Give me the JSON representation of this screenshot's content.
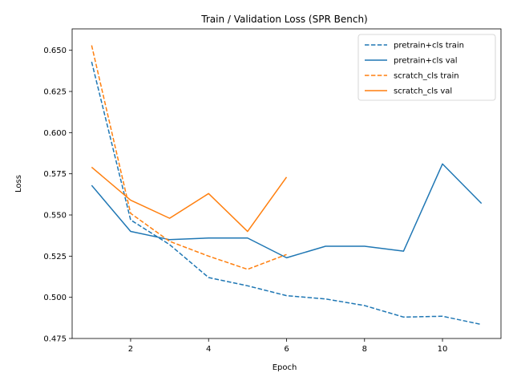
{
  "chart_data": {
    "type": "line",
    "title": "Train / Validation Loss (SPR Bench)",
    "xlabel": "Epoch",
    "ylabel": "Loss",
    "xlim": [
      0.5,
      11.5
    ],
    "ylim": [
      0.475,
      0.663
    ],
    "xticks": [
      2,
      4,
      6,
      8,
      10
    ],
    "yticks": [
      0.475,
      0.5,
      0.525,
      0.55,
      0.575,
      0.6,
      0.625,
      0.65
    ],
    "ytick_labels": [
      "0.475",
      "0.500",
      "0.525",
      "0.550",
      "0.575",
      "0.600",
      "0.625",
      "0.650"
    ],
    "xtick_labels": [
      "2",
      "4",
      "6",
      "8",
      "10"
    ],
    "grid": false,
    "legend_position": "top-right",
    "series": [
      {
        "name": "pretrain+cls train",
        "style": "dashed",
        "color": "#1f77b4",
        "x": [
          1,
          2,
          3,
          4,
          5,
          6,
          7,
          8,
          9,
          10,
          11
        ],
        "y": [
          0.643,
          0.547,
          0.532,
          0.512,
          0.507,
          0.501,
          0.499,
          0.495,
          0.488,
          0.4885,
          0.4835
        ]
      },
      {
        "name": "pretrain+cls val",
        "style": "solid",
        "color": "#1f77b4",
        "x": [
          1,
          2,
          3,
          4,
          5,
          6,
          7,
          8,
          9,
          10,
          11
        ],
        "y": [
          0.568,
          0.54,
          0.535,
          0.536,
          0.536,
          0.524,
          0.531,
          0.531,
          0.528,
          0.581,
          0.557
        ]
      },
      {
        "name": "scratch_cls train",
        "style": "dashed",
        "color": "#ff7f0e",
        "x": [
          1,
          2,
          3,
          4,
          5,
          6
        ],
        "y": [
          0.653,
          0.551,
          0.534,
          0.525,
          0.517,
          0.526
        ]
      },
      {
        "name": "scratch_cls val",
        "style": "solid",
        "color": "#ff7f0e",
        "x": [
          1,
          2,
          3,
          4,
          5,
          6
        ],
        "y": [
          0.579,
          0.559,
          0.548,
          0.563,
          0.54,
          0.573
        ]
      }
    ]
  }
}
